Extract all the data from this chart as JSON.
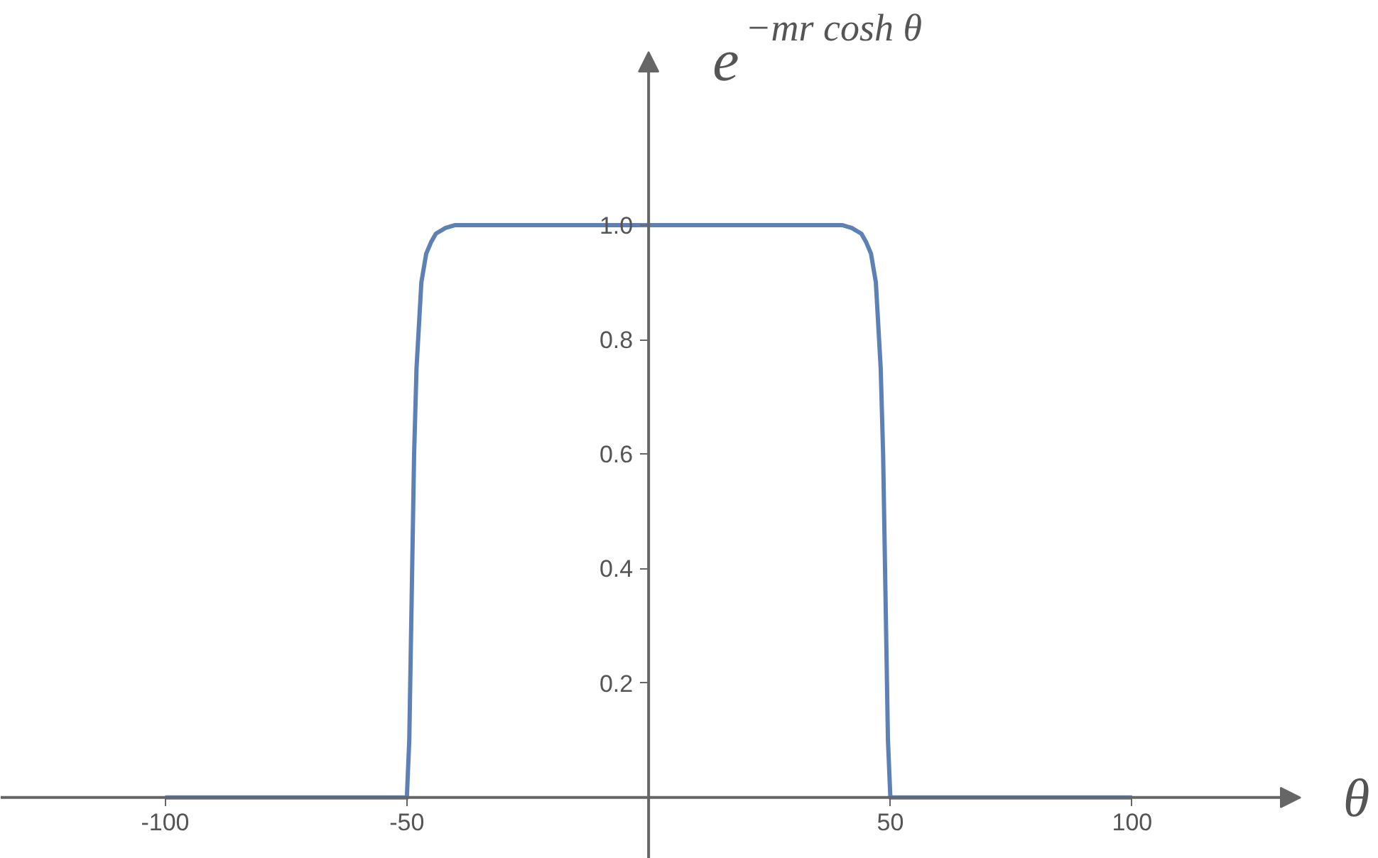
{
  "chart_data": {
    "type": "line",
    "xlabel": "θ",
    "ylabel": "e$^{−mr cosh θ}$",
    "x": [
      -100,
      -60,
      -50,
      -49.5,
      -49,
      -48.5,
      -48,
      -47,
      -46,
      -45,
      -44,
      -42,
      -40,
      -35,
      0,
      35,
      40,
      42,
      44,
      45,
      46,
      47,
      48,
      48.5,
      49,
      49.5,
      50,
      60,
      100
    ],
    "series": [
      {
        "color": "#5e81b5",
        "values": [
          0,
          0,
          0,
          0.1,
          0.35,
          0.6,
          0.75,
          0.9,
          0.95,
          0.97,
          0.985,
          0.995,
          1,
          1,
          1,
          1,
          1,
          0.995,
          0.985,
          0.97,
          0.95,
          0.9,
          0.75,
          0.6,
          0.35,
          0.1,
          0,
          0,
          0
        ]
      }
    ],
    "xlim": [
      -134,
      151
    ],
    "ylim": [
      -0.107,
      1.392
    ],
    "xticks": [
      -100,
      -50,
      50,
      100
    ],
    "yticks": [
      0.2,
      0.4,
      0.6,
      0.8,
      {
        "value": 1,
        "label": "1.0"
      }
    ],
    "marker": "none",
    "line_style": "solid"
  }
}
